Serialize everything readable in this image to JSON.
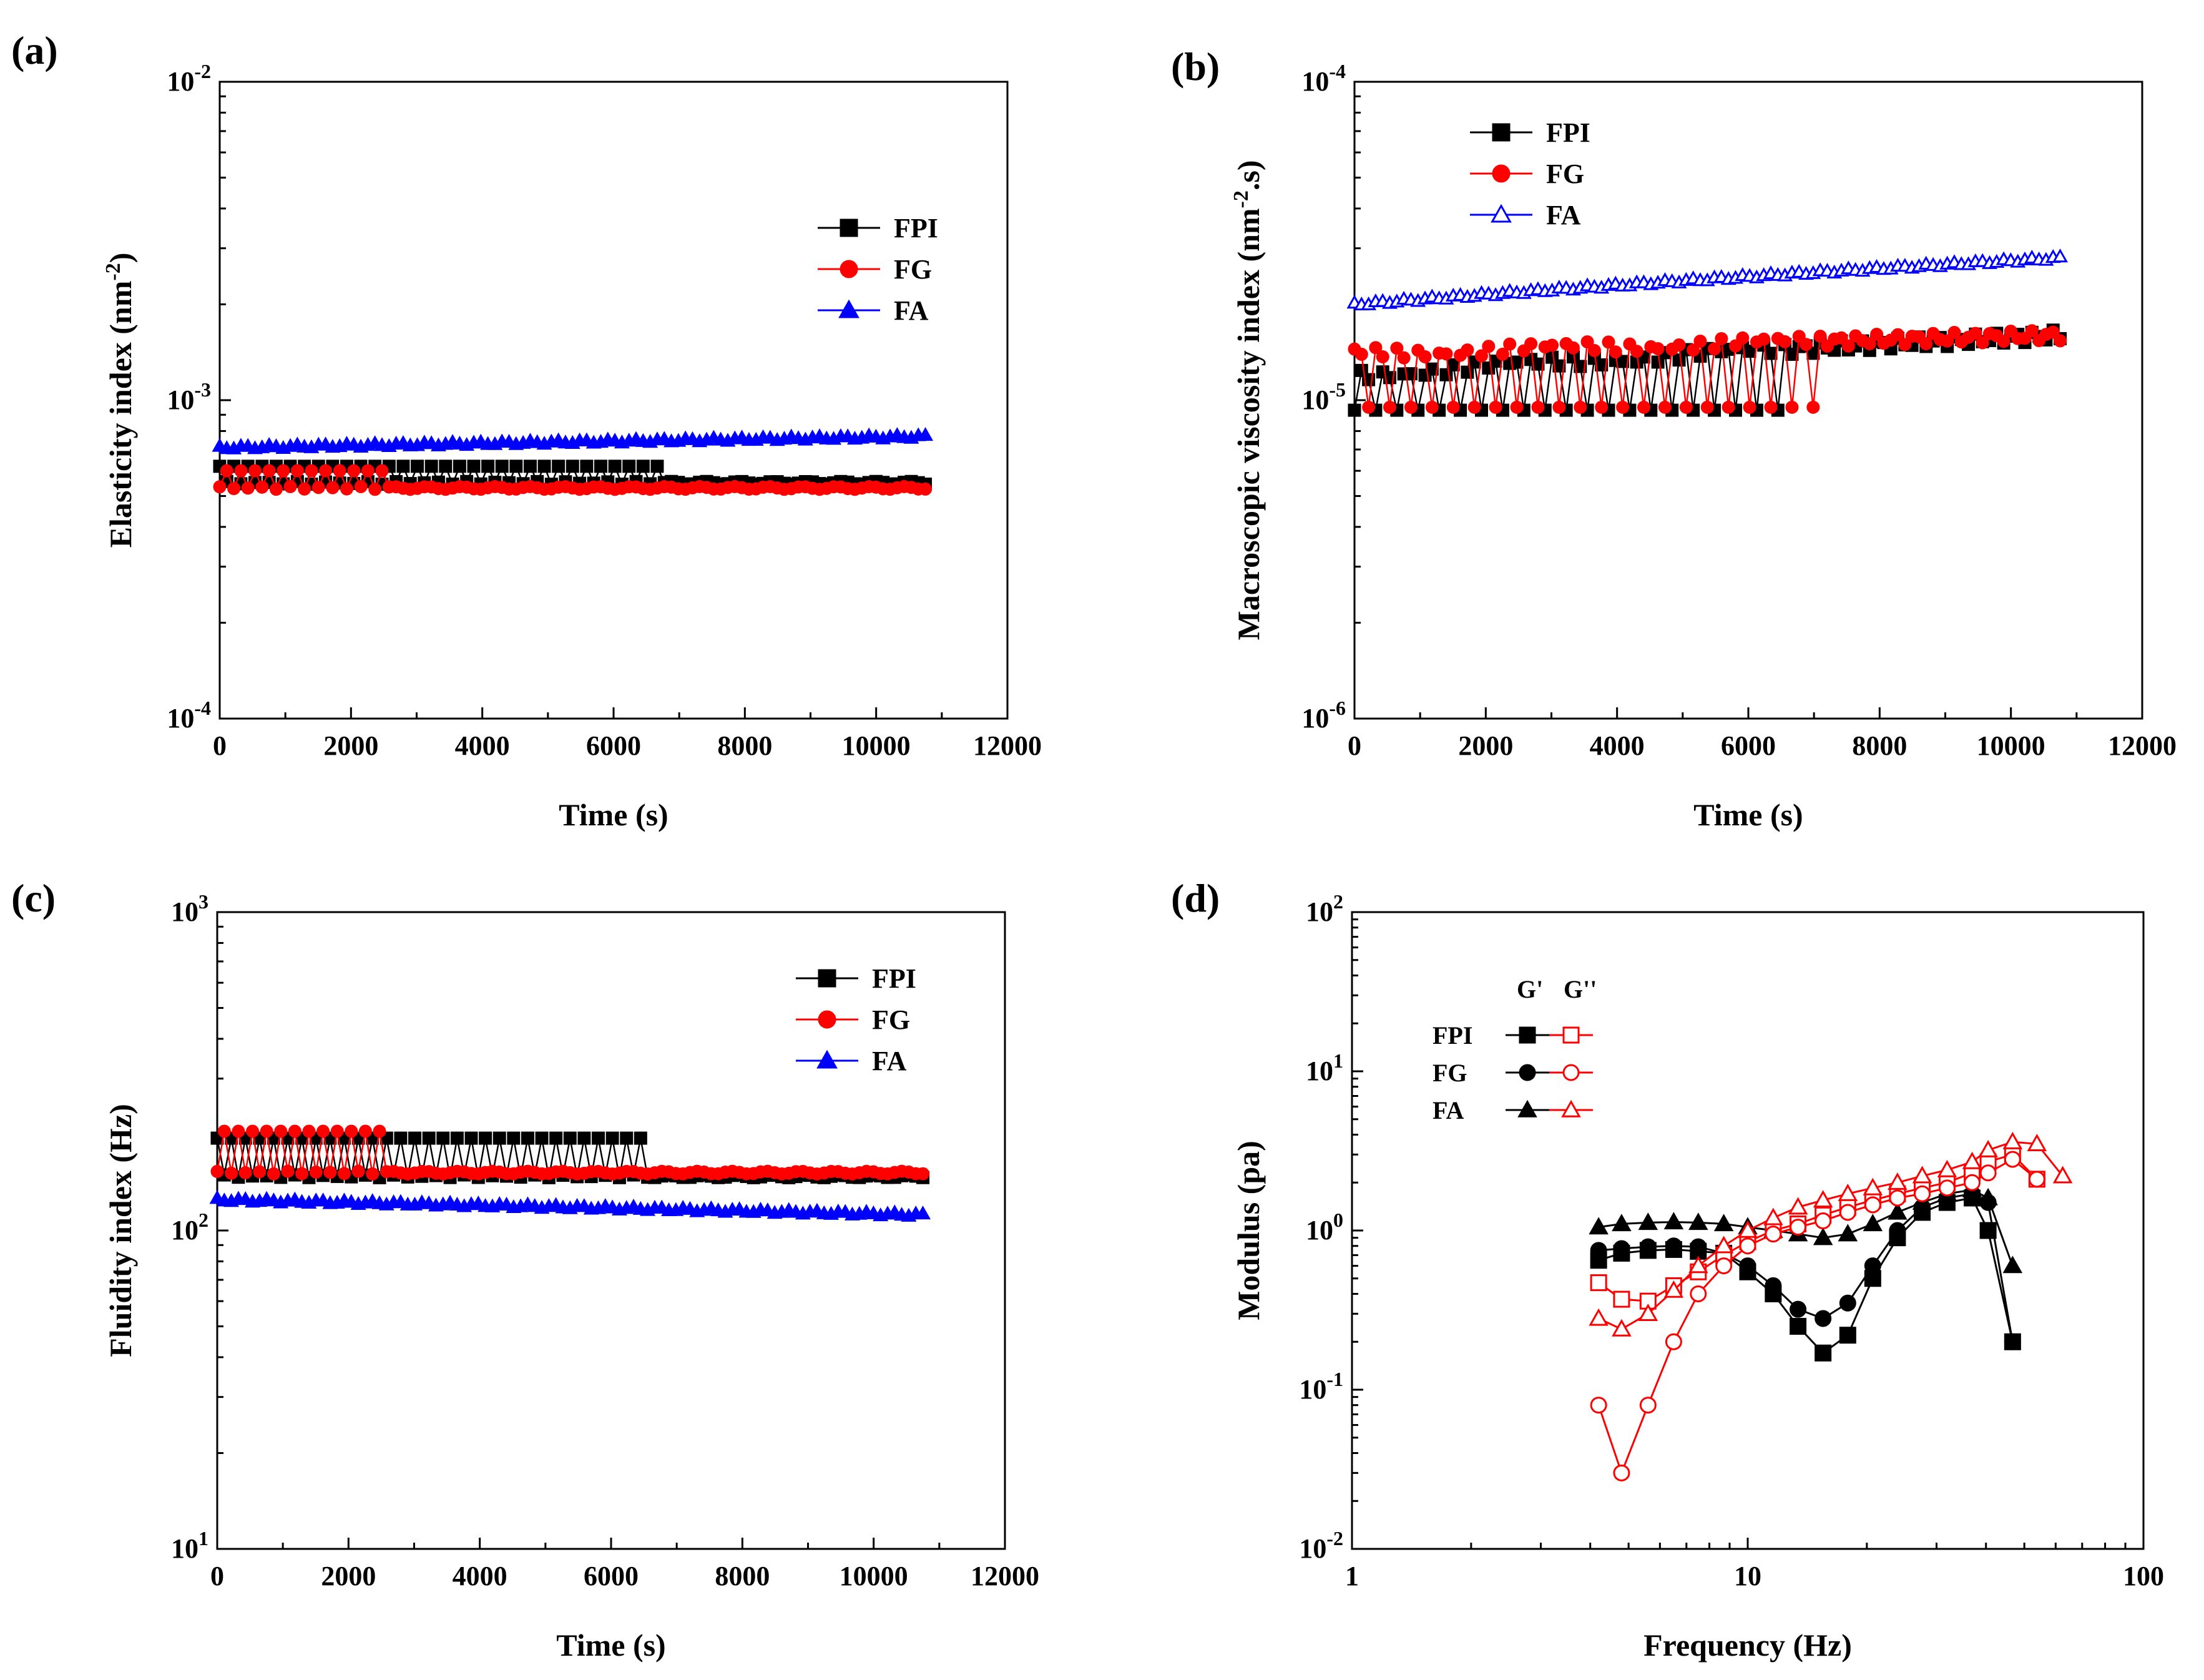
{
  "chart_data": [
    {
      "panel_label": "(a)",
      "type": "line",
      "xlabel": "Time (s)",
      "ylabel": "Elasticity index (nm",
      "ylabel_sup": "-2",
      "ylabel_end": ")",
      "xlim": [
        0,
        12000
      ],
      "xticks": [
        "0",
        "2000",
        "4000",
        "6000",
        "8000",
        "10000",
        "12000"
      ],
      "ylim": [
        0.0001,
        0.01
      ],
      "yscale": "log",
      "yticks": [
        {
          "base": "10",
          "exp": "-4"
        },
        {
          "base": "10",
          "exp": "-3"
        },
        {
          "base": "10",
          "exp": "-2"
        }
      ],
      "legend": [
        "FPI",
        "FG",
        "FA"
      ],
      "series": [
        {
          "name": "FPI",
          "color": "#000000",
          "marker": "square",
          "x_start": 0,
          "x_end": 10750,
          "mean": 0.00055,
          "alt": 0.00062,
          "alt_until": 6700
        },
        {
          "name": "FG",
          "color": "#ff0000",
          "marker": "circle",
          "x_start": 0,
          "x_end": 10750,
          "mean": 0.00053,
          "alt": 0.0006,
          "alt_until": 2600
        },
        {
          "name": "FA",
          "color": "#0000ff",
          "marker": "triangle",
          "x_start": 0,
          "x_end": 10750,
          "start": 0.00071,
          "end": 0.00077
        }
      ]
    },
    {
      "panel_label": "(b)",
      "type": "line",
      "xlabel": "Time (s)",
      "ylabel": "Macroscopic viscosity index (nm",
      "ylabel_sup": "-2",
      "ylabel_end": ".s)",
      "xlim": [
        0,
        12000
      ],
      "xticks": [
        "0",
        "2000",
        "4000",
        "6000",
        "8000",
        "10000",
        "12000"
      ],
      "ylim": [
        1e-06,
        0.0001
      ],
      "yscale": "log",
      "yticks": [
        {
          "base": "10",
          "exp": "-6"
        },
        {
          "base": "10",
          "exp": "-5"
        },
        {
          "base": "10",
          "exp": "-4"
        }
      ],
      "legend": [
        "FPI",
        "FG",
        "FA"
      ],
      "series": [
        {
          "name": "FPI",
          "color": "#000000",
          "marker": "square",
          "x_start": 0,
          "x_end": 10750,
          "high_start": 1.2e-05,
          "high_end": 1.6e-05,
          "low": 9.3e-06,
          "alt_until": 6600
        },
        {
          "name": "FG",
          "color": "#ff0000",
          "marker": "circle",
          "x_start": 0,
          "x_end": 10750,
          "high_start": 1.4e-05,
          "high_end": 1.6e-05,
          "low": 9.5e-06,
          "alt_until": 7000
        },
        {
          "name": "FA",
          "color": "#0000ff",
          "marker": "triangle-open",
          "x_start": 0,
          "x_end": 10750,
          "start": 2e-05,
          "end": 2.8e-05
        }
      ]
    },
    {
      "panel_label": "(c)",
      "type": "line",
      "xlabel": "Time (s)",
      "ylabel": "Fluidity index (Hz)",
      "xlim": [
        0,
        12000
      ],
      "xticks": [
        "0",
        "2000",
        "4000",
        "6000",
        "8000",
        "10000",
        "12000"
      ],
      "ylim": [
        10,
        1000
      ],
      "yscale": "log",
      "yticks": [
        {
          "base": "10",
          "exp": "1"
        },
        {
          "base": "10",
          "exp": "2"
        },
        {
          "base": "10",
          "exp": "3"
        }
      ],
      "legend": [
        "FPI",
        "FG",
        "FA"
      ],
      "series": [
        {
          "name": "FPI",
          "color": "#000000",
          "marker": "square",
          "x_start": 0,
          "x_end": 10750,
          "mean": 148,
          "alt": 195,
          "alt_until": 6500
        },
        {
          "name": "FG",
          "color": "#ff0000",
          "marker": "circle",
          "x_start": 0,
          "x_end": 10750,
          "mean": 152,
          "alt": 205,
          "alt_until": 2600
        },
        {
          "name": "FA",
          "color": "#0000ff",
          "marker": "triangle",
          "x_start": 0,
          "x_end": 10750,
          "start": 125,
          "end": 112
        }
      ]
    },
    {
      "panel_label": "(d)",
      "type": "line",
      "xlabel": "Frequency (Hz)",
      "ylabel": "Modulus (pa)",
      "xscale": "log",
      "yscale": "log",
      "xlim": [
        1,
        100
      ],
      "ylim": [
        0.01,
        100
      ],
      "xticks": [
        "1",
        "10",
        "100"
      ],
      "yticks": [
        {
          "base": "10",
          "exp": "-2"
        },
        {
          "base": "10",
          "exp": "-1"
        },
        {
          "base": "10",
          "exp": "0"
        },
        {
          "base": "10",
          "exp": "1"
        },
        {
          "base": "10",
          "exp": "2"
        }
      ],
      "legend_header": [
        "G'",
        "G''"
      ],
      "legend_rows": [
        "FPI",
        "FG",
        "FA"
      ],
      "series": [
        {
          "name": "FPI G'",
          "color": "#000000",
          "marker": "square",
          "filled": true,
          "x": [
            4.2,
            4.8,
            5.6,
            6.5,
            7.5,
            8.7,
            10,
            11.6,
            13.4,
            15.5,
            17.9,
            20.7,
            23.9,
            27.6,
            31.9,
            36.9,
            40.5,
            46.7
          ],
          "y": [
            0.65,
            0.72,
            0.75,
            0.76,
            0.74,
            0.72,
            0.55,
            0.4,
            0.25,
            0.17,
            0.22,
            0.5,
            0.9,
            1.3,
            1.5,
            1.6,
            1.0,
            0.2
          ]
        },
        {
          "name": "FG G'",
          "color": "#000000",
          "marker": "circle",
          "filled": true,
          "x": [
            4.2,
            4.8,
            5.6,
            6.5,
            7.5,
            8.7,
            10,
            11.6,
            13.4,
            15.5,
            17.9,
            20.7,
            23.9,
            27.6,
            31.9,
            36.9,
            40.5,
            46.7
          ],
          "y": [
            0.75,
            0.77,
            0.79,
            0.8,
            0.79,
            0.72,
            0.6,
            0.45,
            0.32,
            0.28,
            0.35,
            0.6,
            1.0,
            1.4,
            1.6,
            1.7,
            1.5,
            0.2
          ]
        },
        {
          "name": "FA G'",
          "color": "#000000",
          "marker": "triangle",
          "filled": true,
          "x": [
            4.2,
            4.8,
            5.6,
            6.5,
            7.5,
            8.7,
            10,
            11.6,
            13.4,
            15.5,
            17.9,
            20.7,
            23.9,
            27.6,
            31.9,
            36.9,
            40.5,
            46.7
          ],
          "y": [
            1.05,
            1.1,
            1.12,
            1.13,
            1.12,
            1.1,
            1.05,
            1.0,
            0.95,
            0.9,
            0.95,
            1.1,
            1.3,
            1.5,
            1.7,
            1.8,
            1.6,
            0.6
          ]
        },
        {
          "name": "FPI G''",
          "color": "#ff0000",
          "marker": "square",
          "filled": false,
          "x": [
            4.2,
            4.8,
            5.6,
            6.5,
            7.5,
            8.7,
            10,
            11.6,
            13.4,
            15.5,
            17.9,
            20.7,
            23.9,
            27.6,
            31.9,
            36.9,
            40.5,
            46.7,
            53.8
          ],
          "y": [
            0.47,
            0.37,
            0.36,
            0.45,
            0.55,
            0.7,
            0.85,
            1.0,
            1.1,
            1.25,
            1.4,
            1.55,
            1.7,
            1.85,
            2.0,
            2.3,
            2.7,
            3.0,
            2.1
          ]
        },
        {
          "name": "FG G''",
          "color": "#ff0000",
          "marker": "circle",
          "filled": false,
          "x": [
            4.2,
            4.8,
            5.6,
            6.5,
            7.5,
            8.7,
            10,
            11.6,
            13.4,
            15.5,
            17.9,
            20.7,
            23.9,
            27.6,
            31.9,
            36.9,
            40.5,
            46.7,
            53.8
          ],
          "y": [
            0.08,
            0.03,
            0.08,
            0.2,
            0.4,
            0.6,
            0.8,
            0.95,
            1.05,
            1.15,
            1.3,
            1.45,
            1.6,
            1.7,
            1.85,
            2.0,
            2.3,
            2.8,
            2.1
          ]
        },
        {
          "name": "FA G''",
          "color": "#ff0000",
          "marker": "triangle",
          "filled": false,
          "x": [
            4.2,
            4.8,
            5.6,
            6.5,
            7.5,
            8.7,
            10,
            11.6,
            13.4,
            15.5,
            17.9,
            20.7,
            23.9,
            27.6,
            31.9,
            36.9,
            40.5,
            46.7,
            53.8,
            62.5
          ],
          "y": [
            0.28,
            0.24,
            0.3,
            0.42,
            0.6,
            0.8,
            1.0,
            1.2,
            1.4,
            1.55,
            1.7,
            1.85,
            2.0,
            2.2,
            2.4,
            2.7,
            3.2,
            3.6,
            3.5,
            2.2
          ]
        }
      ]
    }
  ]
}
